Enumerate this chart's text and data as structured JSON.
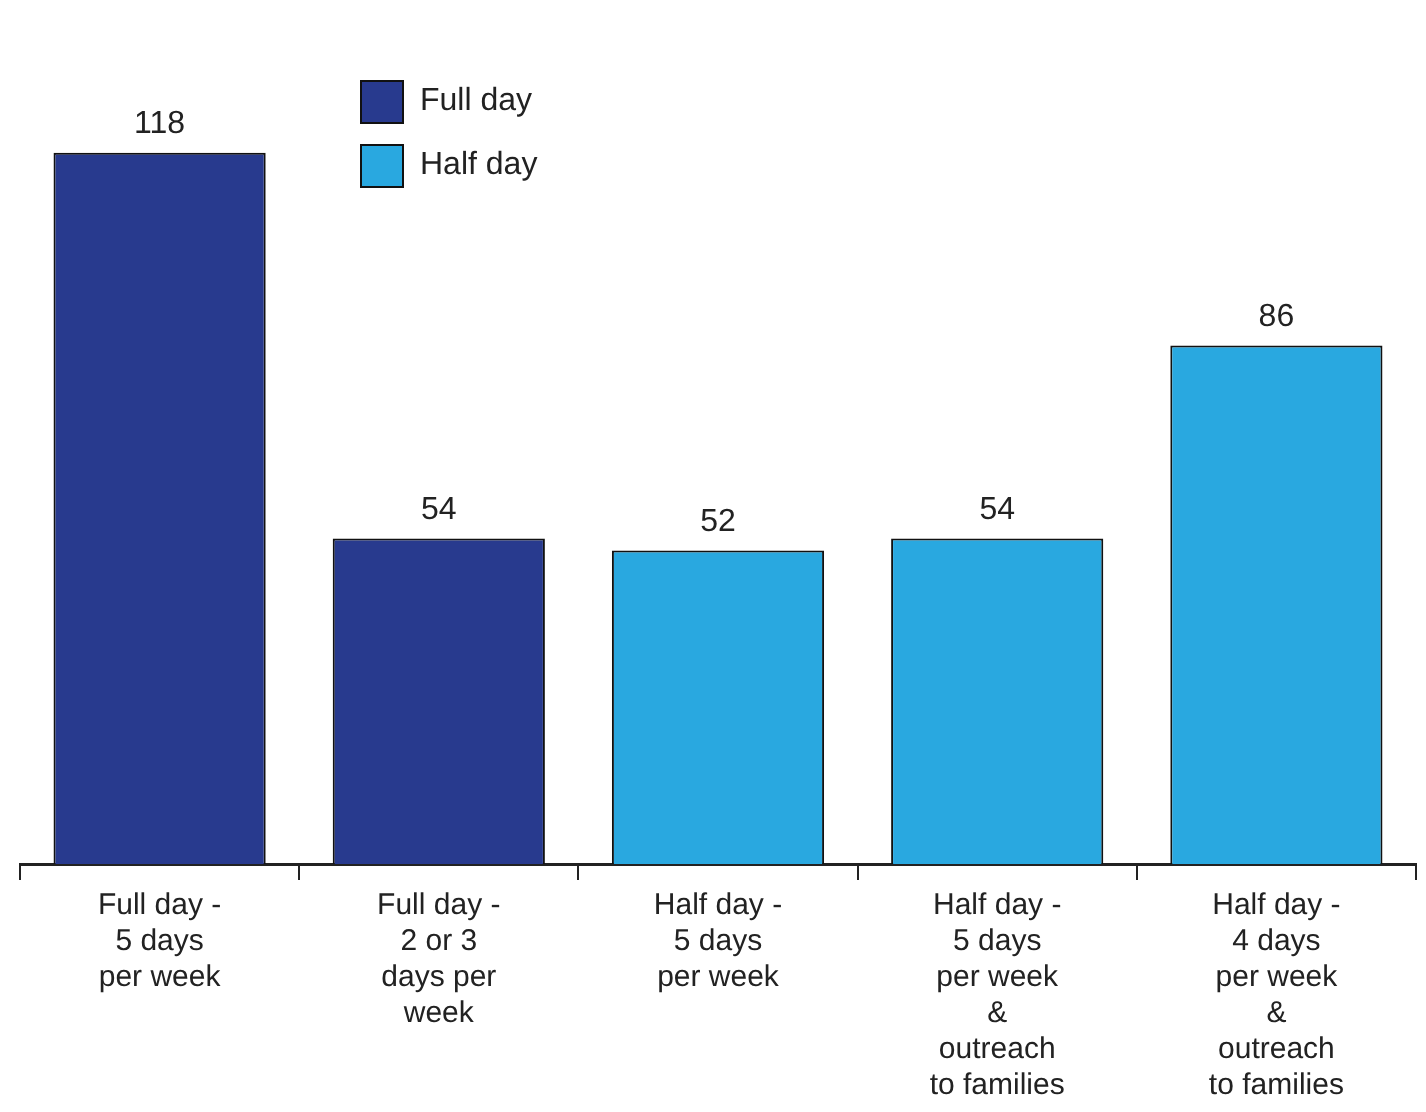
{
  "chart_data": {
    "type": "bar",
    "categories": [
      "Full day - 5 days per week",
      "Full day - 2 or 3 days per week",
      "Half day - 5 days per week",
      "Half day - 5 days per week & outreach to families",
      "Half day - 4 days per week & outreach to families"
    ],
    "series": [
      {
        "name": "Full day",
        "color": "#283a8e",
        "values": [
          118,
          54,
          null,
          null,
          null
        ]
      },
      {
        "name": "Half day",
        "color": "#29a8e0",
        "values": [
          null,
          null,
          52,
          54,
          86
        ]
      }
    ],
    "data_labels": true,
    "legend": "top left",
    "grid": false
  }
}
